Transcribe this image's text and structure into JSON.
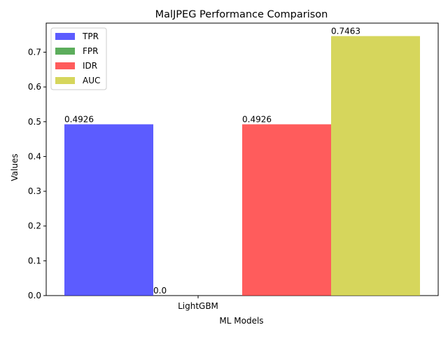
{
  "chart_data": {
    "type": "bar",
    "title": "MalJPEG Performance Comparison",
    "xlabel": "ML Models",
    "ylabel": "Values",
    "categories": [
      "LightGBM"
    ],
    "series": [
      {
        "name": "TPR",
        "values": [
          0.4926
        ],
        "label": "0.4926",
        "color": "#3333ff"
      },
      {
        "name": "FPR",
        "values": [
          0.0
        ],
        "label": "0.0",
        "color": "#339933"
      },
      {
        "name": "IDR",
        "values": [
          0.4926
        ],
        "label": "0.4926",
        "color": "#ff3333"
      },
      {
        "name": "AUC",
        "values": [
          0.7463
        ],
        "label": "0.7463",
        "color": "#cccc33"
      }
    ],
    "ylim": [
      0,
      0.7836
    ],
    "yticks": [
      "0.0",
      "0.1",
      "0.2",
      "0.3",
      "0.4",
      "0.5",
      "0.6",
      "0.7"
    ],
    "grid": false,
    "legend_position": "top-left"
  }
}
